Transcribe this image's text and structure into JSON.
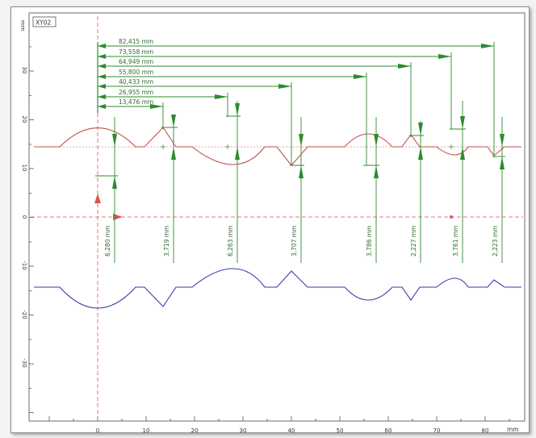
{
  "view_label": "XY02",
  "axis_unit_y": "mm",
  "axis_unit_x": "mm",
  "x_ticks": [
    "0",
    "10",
    "20",
    "30",
    "40",
    "50",
    "60",
    "70",
    "80"
  ],
  "y_ticks": [
    "30",
    "20",
    "10",
    "0",
    "-10",
    "-20",
    "-30"
  ],
  "horizontal_dims": [
    "82,415 mm",
    "73,558 mm",
    "64,949 mm",
    "55,800 mm",
    "40,433 mm",
    "26,955 mm",
    "13,476 mm"
  ],
  "vertical_dims": [
    "6,280 mm",
    "3,719 mm",
    "6,263 mm",
    "3,707 mm",
    "3,786 mm",
    "2,227 mm",
    "3,761 mm",
    "2,223 mm"
  ],
  "colors": {
    "dimension": "#2e8b2e",
    "profile_red": "#c0504d",
    "profile_blue": "#3a3aa8",
    "axis": "#d9534f",
    "frame": "#555555"
  }
}
